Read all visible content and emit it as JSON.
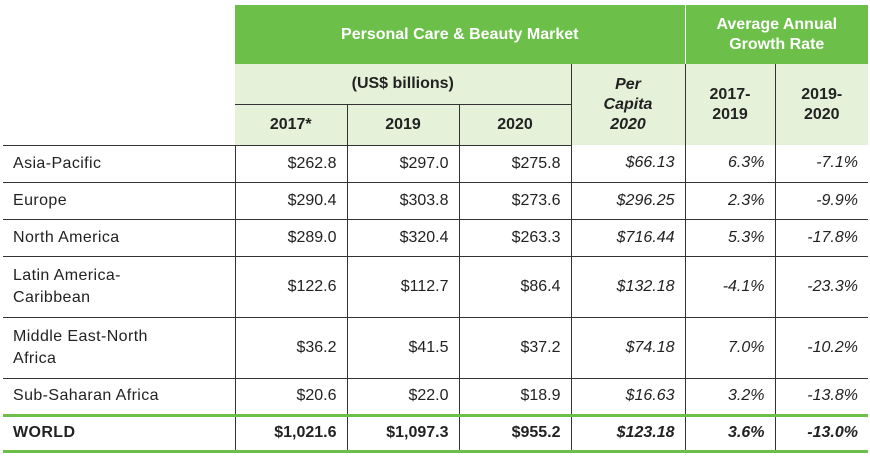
{
  "header": {
    "market_title": "Personal Care & Beauty Market",
    "growth_title": "Average Annual Growth Rate",
    "units": "(US$ billions)",
    "per_capita": [
      "Per",
      "Capita",
      "2020"
    ],
    "years": [
      "2017*",
      "2019",
      "2020"
    ],
    "growth_periods": [
      [
        "2017-",
        "2019"
      ],
      [
        "2019-",
        "2020"
      ]
    ]
  },
  "rows": [
    {
      "region": [
        "Asia-Pacific"
      ],
      "v2017": "$262.8",
      "v2019": "$297.0",
      "v2020": "$275.8",
      "per_capita": "$66.13",
      "g1": "6.3%",
      "g2": "-7.1%"
    },
    {
      "region": [
        "Europe"
      ],
      "v2017": "$290.4",
      "v2019": "$303.8",
      "v2020": "$273.6",
      "per_capita": "$296.25",
      "g1": "2.3%",
      "g2": "-9.9%"
    },
    {
      "region": [
        "North America"
      ],
      "v2017": "$289.0",
      "v2019": "$320.4",
      "v2020": "$263.3",
      "per_capita": "$716.44",
      "g1": "5.3%",
      "g2": "-17.8%"
    },
    {
      "region": [
        "Latin America-",
        "Caribbean"
      ],
      "v2017": "$122.6",
      "v2019": "$112.7",
      "v2020": "$86.4",
      "per_capita": "$132.18",
      "g1": "-4.1%",
      "g2": "-23.3%"
    },
    {
      "region": [
        "Middle East-North",
        "Africa"
      ],
      "v2017": "$36.2",
      "v2019": "$41.5",
      "v2020": "$37.2",
      "per_capita": "$74.18",
      "g1": "7.0%",
      "g2": "-10.2%"
    },
    {
      "region": [
        "Sub-Saharan Africa"
      ],
      "v2017": "$20.6",
      "v2019": "$22.0",
      "v2020": "$18.9",
      "per_capita": "$16.63",
      "g1": "3.2%",
      "g2": "-13.8%"
    }
  ],
  "world": {
    "label": "WORLD",
    "v2017": "$1,021.6",
    "v2019": "$1,097.3",
    "v2020": "$955.2",
    "per_capita": "$123.18",
    "g1": "3.6%",
    "g2": "-13.0%"
  },
  "colors": {
    "accent_green": "#6cc04a",
    "light_green": "#e6f1d9"
  }
}
